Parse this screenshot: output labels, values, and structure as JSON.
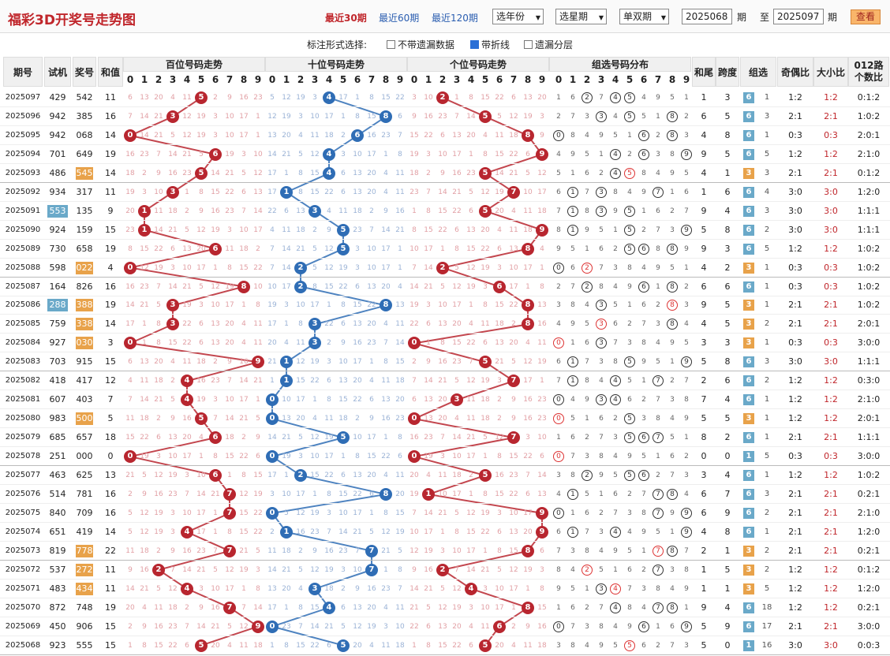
{
  "header": {
    "title": "福彩3D开奖号走势图",
    "links": [
      "最近30期",
      "最近60期",
      "最近120期"
    ],
    "selects": [
      "选年份",
      "选星期",
      "单双期"
    ],
    "from": "2025068",
    "to": "2025097",
    "qi": "期",
    "zhi": "至",
    "query": "查看"
  },
  "options": {
    "label": "标注形式选择:",
    "opts": [
      {
        "label": "不带遗漏数据",
        "checked": false
      },
      {
        "label": "带折线",
        "checked": true
      },
      {
        "label": "遗漏分层",
        "checked": false
      }
    ]
  },
  "columns": {
    "issue": "期号",
    "test": "试机",
    "prize": "奖号",
    "sum": "和值",
    "hundreds": "百位号码走势",
    "tens": "十位号码走势",
    "units": "个位号码走势",
    "group": "组选号码分布",
    "tail": "和尾",
    "span": "跨度",
    "grp": "组选",
    "oddeven": "奇偶比",
    "bigsmall": "大小比",
    "road012a": "012路",
    "road012b": "个数比"
  },
  "colors": {
    "red": "#b8262f",
    "blue": "#2f6db5",
    "boxBlue": "#6aa9c9",
    "boxOrange": "#e8a24a"
  },
  "rows": [
    [
      "2025097",
      "429",
      "542",
      "11",
      "1",
      "3",
      "6",
      "1",
      "1:2",
      "0:1:2",
      0,
      0
    ],
    [
      "2025096",
      "942",
      "385",
      "16",
      "6",
      "5",
      "6",
      "3",
      "2:1",
      "1:0:2",
      0,
      0
    ],
    [
      "2025095",
      "942",
      "068",
      "14",
      "4",
      "8",
      "6",
      "1",
      "0:3",
      "2:0:1",
      0,
      0
    ],
    [
      "2025094",
      "701",
      "649",
      "19",
      "9",
      "5",
      "6",
      "5",
      "1:2",
      "2:1:0",
      0,
      0
    ],
    [
      "2025093",
      "486",
      "545",
      "14",
      "4",
      "1",
      "3",
      "3",
      "2:1",
      "0:1:2",
      0,
      1
    ],
    [
      "2025092",
      "934",
      "317",
      "11",
      "1",
      "6",
      "6",
      "4",
      "3:0",
      "1:2:0",
      0,
      0
    ],
    [
      "2025091",
      "553",
      "135",
      "9",
      "9",
      "4",
      "6",
      "3",
      "3:0",
      "1:1:1",
      1,
      0
    ],
    [
      "2025090",
      "924",
      "159",
      "15",
      "5",
      "8",
      "6",
      "2",
      "3:0",
      "1:1:1",
      0,
      0
    ],
    [
      "2025089",
      "730",
      "658",
      "19",
      "9",
      "3",
      "6",
      "5",
      "1:2",
      "1:0:2",
      0,
      0
    ],
    [
      "2025088",
      "598",
      "022",
      "4",
      "4",
      "2",
      "3",
      "1",
      "0:3",
      "1:0:2",
      0,
      1
    ],
    [
      "2025087",
      "164",
      "826",
      "16",
      "6",
      "6",
      "6",
      "1",
      "0:3",
      "1:0:2",
      0,
      0
    ],
    [
      "2025086",
      "288",
      "388",
      "19",
      "9",
      "5",
      "3",
      "1",
      "2:1",
      "1:0:2",
      1,
      1
    ],
    [
      "2025085",
      "759",
      "338",
      "14",
      "4",
      "5",
      "3",
      "2",
      "2:1",
      "2:0:1",
      0,
      1
    ],
    [
      "2025084",
      "927",
      "030",
      "3",
      "3",
      "3",
      "3",
      "1",
      "0:3",
      "3:0:0",
      0,
      1
    ],
    [
      "2025083",
      "703",
      "915",
      "15",
      "5",
      "8",
      "6",
      "3",
      "3:0",
      "1:1:1",
      0,
      0
    ],
    [
      "2025082",
      "418",
      "417",
      "12",
      "2",
      "6",
      "6",
      "2",
      "1:2",
      "0:3:0",
      0,
      0
    ],
    [
      "2025081",
      "607",
      "403",
      "7",
      "7",
      "4",
      "6",
      "1",
      "1:2",
      "2:1:0",
      0,
      0
    ],
    [
      "2025080",
      "983",
      "500",
      "5",
      "5",
      "5",
      "3",
      "1",
      "1:2",
      "2:0:1",
      0,
      1
    ],
    [
      "2025079",
      "685",
      "657",
      "18",
      "8",
      "2",
      "6",
      "1",
      "2:1",
      "1:1:1",
      0,
      0
    ],
    [
      "2025078",
      "251",
      "000",
      "0",
      "0",
      "0",
      "1",
      "5",
      "0:3",
      "3:0:0",
      0,
      0
    ],
    [
      "2025077",
      "463",
      "625",
      "13",
      "3",
      "4",
      "6",
      "1",
      "1:2",
      "1:0:2",
      0,
      0
    ],
    [
      "2025076",
      "514",
      "781",
      "16",
      "6",
      "7",
      "6",
      "3",
      "2:1",
      "0:2:1",
      0,
      0
    ],
    [
      "2025075",
      "840",
      "709",
      "16",
      "6",
      "9",
      "6",
      "2",
      "2:1",
      "2:1:0",
      0,
      0
    ],
    [
      "2025074",
      "651",
      "419",
      "14",
      "4",
      "8",
      "6",
      "1",
      "2:1",
      "1:2:0",
      0,
      0
    ],
    [
      "2025073",
      "819",
      "778",
      "22",
      "2",
      "1",
      "3",
      "2",
      "2:1",
      "0:2:1",
      0,
      1
    ],
    [
      "2025072",
      "537",
      "272",
      "11",
      "1",
      "5",
      "3",
      "2",
      "1:2",
      "0:1:2",
      0,
      1
    ],
    [
      "2025071",
      "483",
      "434",
      "11",
      "1",
      "1",
      "3",
      "5",
      "1:2",
      "1:2:0",
      0,
      1
    ],
    [
      "2025070",
      "872",
      "748",
      "19",
      "9",
      "4",
      "6",
      "18",
      "1:2",
      "0:2:1",
      0,
      0
    ],
    [
      "2025069",
      "450",
      "906",
      "15",
      "5",
      "9",
      "6",
      "17",
      "2:1",
      "3:0:0",
      0,
      0
    ],
    [
      "2025068",
      "923",
      "555",
      "15",
      "5",
      "0",
      "1",
      "16",
      "3:0",
      "0:0:3",
      0,
      0
    ]
  ]
}
